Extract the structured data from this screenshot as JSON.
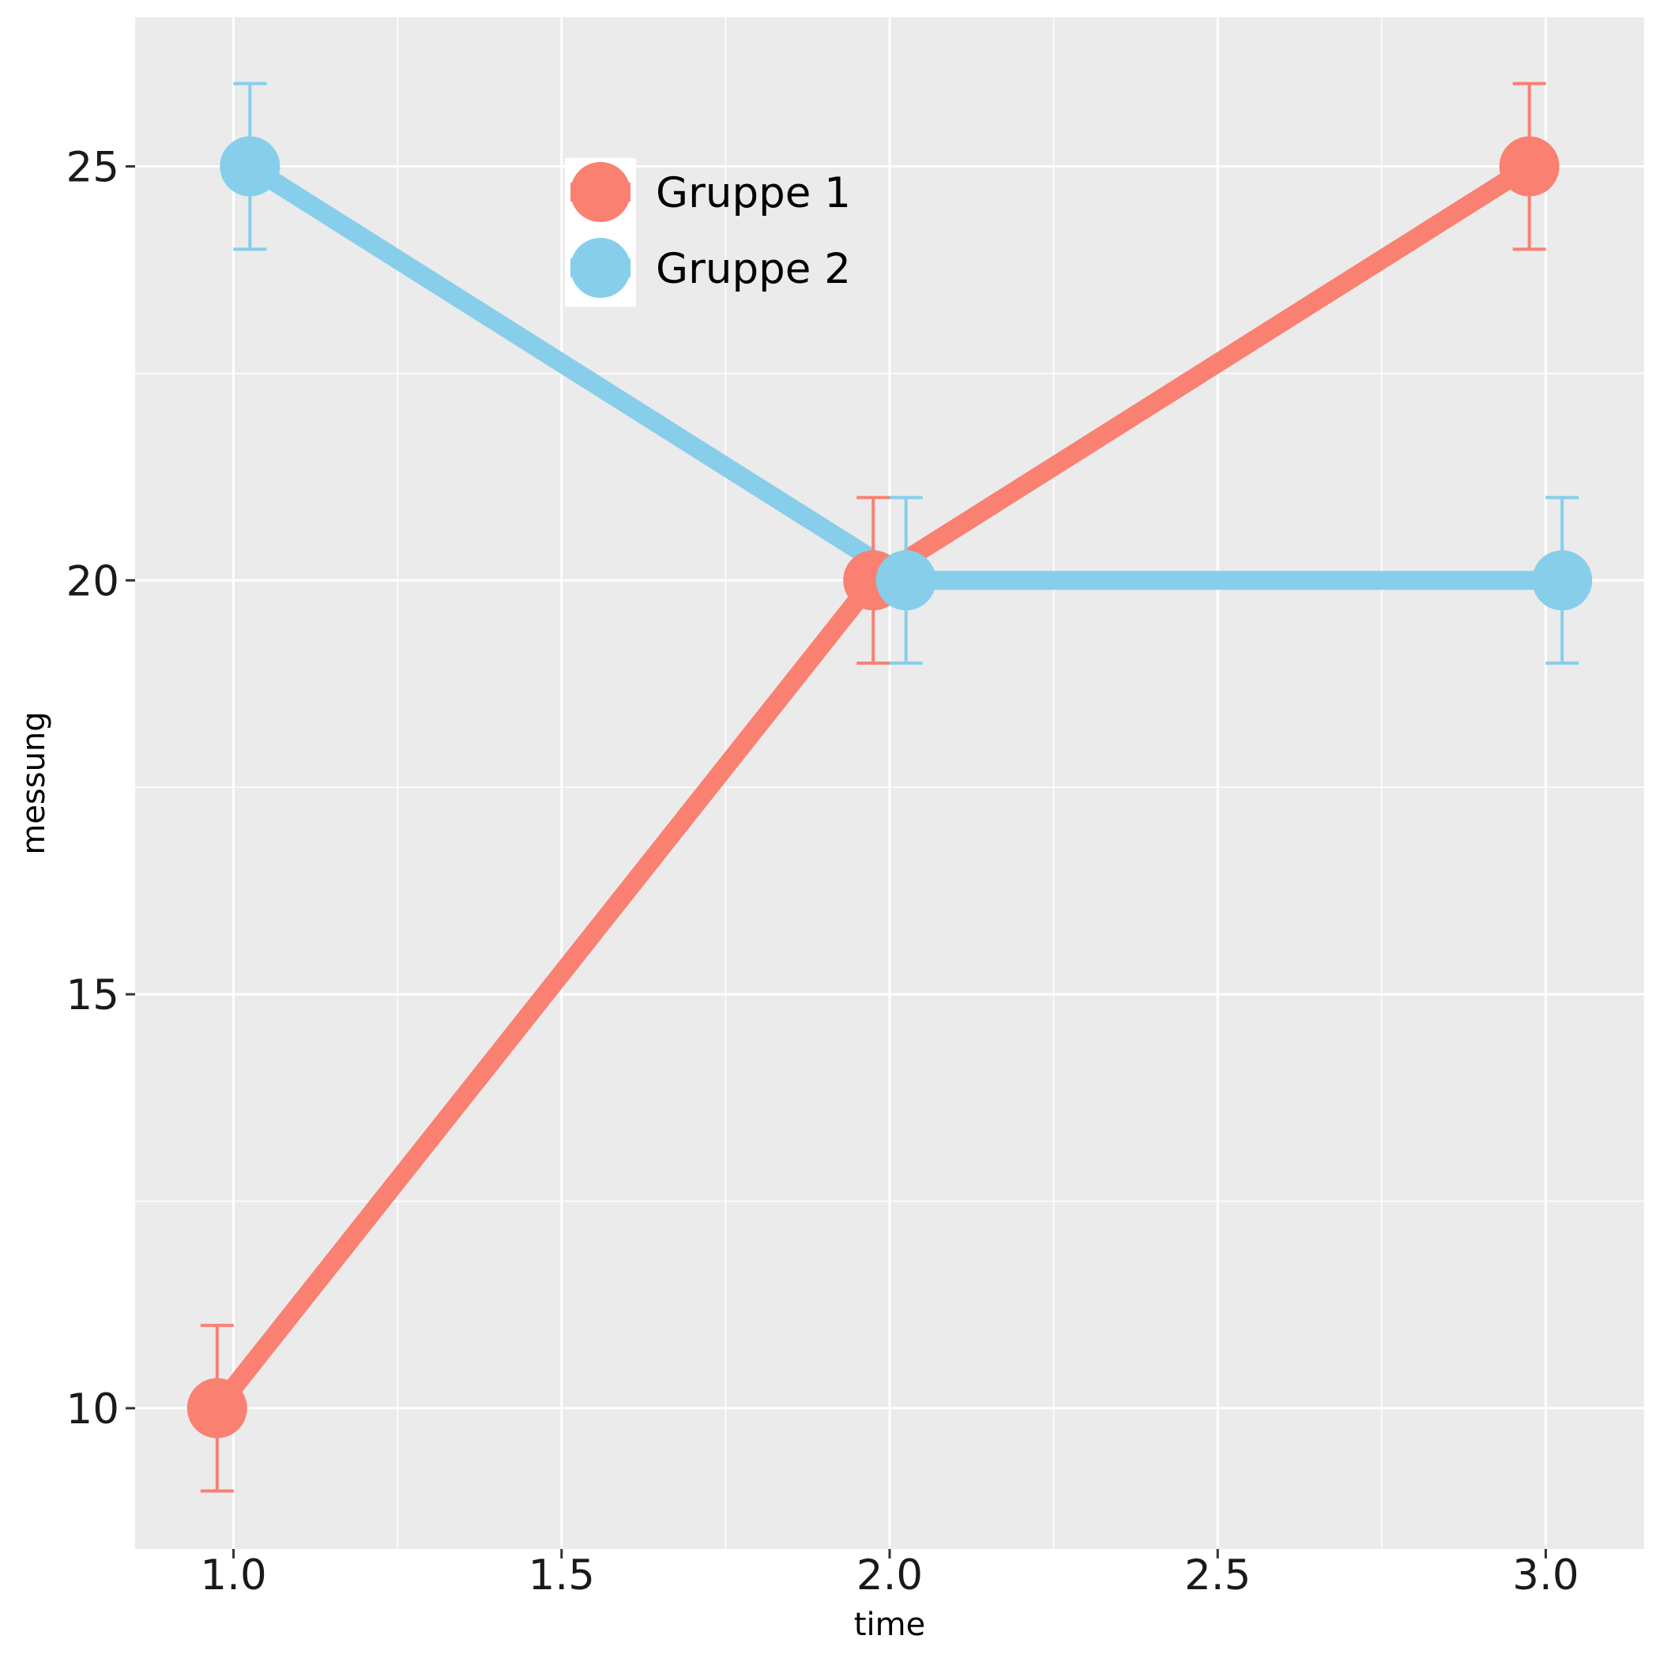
{
  "chart_data": {
    "type": "line",
    "xlabel": "time",
    "ylabel": "messung",
    "xlim": [
      0.85,
      3.15
    ],
    "ylim": [
      8.3,
      26.8
    ],
    "x_ticks": [
      1.0,
      1.5,
      2.0,
      2.5,
      3.0
    ],
    "x_tick_labels": [
      "1.0",
      "1.5",
      "2.0",
      "2.5",
      "3.0"
    ],
    "y_ticks": [
      10,
      15,
      20,
      25
    ],
    "y_tick_labels": [
      "10",
      "15",
      "20",
      "25"
    ],
    "grid": true,
    "legend_position": "top-center",
    "background": "#EBEBEB",
    "series": [
      {
        "name": "Gruppe 1",
        "color": "#FA8072",
        "x": [
          1,
          2,
          3
        ],
        "y": [
          10,
          20,
          25
        ],
        "ymin": [
          9,
          19,
          24
        ],
        "ymax": [
          11,
          21,
          26
        ]
      },
      {
        "name": "Gruppe 2",
        "color": "#87CEEB",
        "x": [
          1,
          2,
          3
        ],
        "y": [
          25,
          20,
          20
        ],
        "ymin": [
          24,
          19,
          19
        ],
        "ymax": [
          26,
          21,
          21
        ]
      }
    ]
  }
}
